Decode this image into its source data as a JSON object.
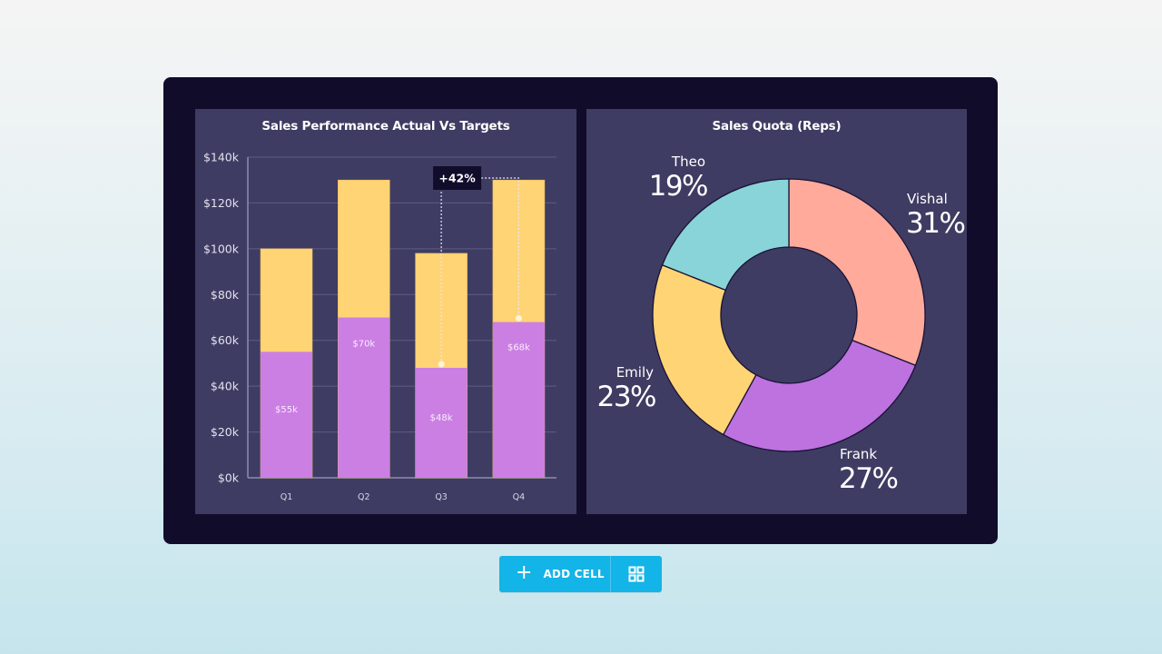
{
  "add_cell": {
    "label": "ADD CELL",
    "plus_icon": "+",
    "layout_icon": "grid-icon"
  },
  "colors": {
    "frame_bg": "#120c2b",
    "panel_bg": "#3e3c62",
    "target": "#ffd475",
    "actual": "#cc7fe3",
    "button": "#13b4e7",
    "donut": [
      "#ffaa9b",
      "#bd72e0",
      "#ffd475",
      "#89d4d9"
    ]
  },
  "chart_data": [
    {
      "type": "bar",
      "title": "Sales Performance Actual Vs Targets",
      "xlabel": "",
      "ylabel": "",
      "categories": [
        "Q1",
        "Q2",
        "Q3",
        "Q4"
      ],
      "series": [
        {
          "name": "Actual",
          "values": [
            55,
            70,
            48,
            68
          ],
          "labels": [
            "$55k",
            "$70k",
            "$48k",
            "$68k"
          ]
        },
        {
          "name": "Target",
          "values": [
            100,
            130,
            98,
            130
          ]
        }
      ],
      "stacking": "overlay",
      "ylim": [
        0,
        140
      ],
      "yticks": [
        0,
        20,
        40,
        60,
        80,
        100,
        120,
        140
      ],
      "ytick_labels": [
        "$0k",
        "$20k",
        "$40k",
        "$60k",
        "$80k",
        "$100k",
        "$120k",
        "$140k"
      ],
      "grid": true,
      "annotation": {
        "text": "+42%",
        "from": "Q3",
        "to": "Q4",
        "series": "Actual"
      }
    },
    {
      "type": "pie",
      "donut": true,
      "title": "Sales Quota (Reps)",
      "slices": [
        {
          "label": "Vishal",
          "value": 31,
          "display": "31%"
        },
        {
          "label": "Frank",
          "value": 27,
          "display": "27%"
        },
        {
          "label": "Emily",
          "value": 23,
          "display": "23%"
        },
        {
          "label": "Theo",
          "value": 19,
          "display": "19%"
        }
      ],
      "start": "top",
      "direction": "clockwise"
    }
  ]
}
